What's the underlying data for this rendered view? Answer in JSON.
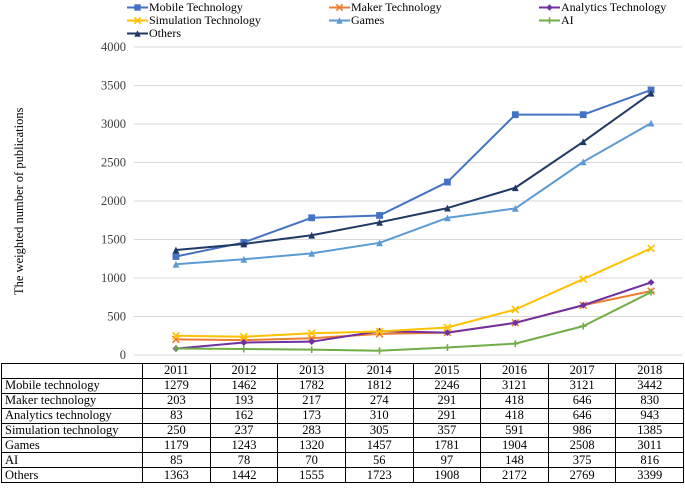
{
  "chart_data": {
    "type": "line",
    "title": "",
    "xlabel": "",
    "ylabel": "The weighted number of publications",
    "x_categories": [
      "2011",
      "2012",
      "2013",
      "2014",
      "2015",
      "2016",
      "2017",
      "2018"
    ],
    "ylim": [
      0,
      4000
    ],
    "ytick_step": 500,
    "grid": true,
    "grid_color": "#D9D9D9",
    "tick_label_color": "#404040",
    "legend_position": "top",
    "legend_columns": [
      [
        "Mobile Technology",
        "Simulation Technology",
        "Others"
      ],
      [
        "Maker Technology",
        "Games"
      ],
      [
        "Analytics Technology",
        "AI"
      ]
    ],
    "series": [
      {
        "name": "Mobile Technology",
        "color": "#4472C4",
        "marker": "square",
        "values": [
          1279,
          1462,
          1782,
          1812,
          2246,
          3121,
          3121,
          3442
        ]
      },
      {
        "name": "Maker Technology",
        "color": "#ED7D31",
        "marker": "x",
        "values": [
          203,
          193,
          217,
          274,
          291,
          418,
          646,
          830
        ]
      },
      {
        "name": "Analytics Technology",
        "color": "#7030A0",
        "marker": "diamond",
        "values": [
          83,
          162,
          173,
          310,
          291,
          418,
          646,
          943
        ]
      },
      {
        "name": "Simulation Technology",
        "color": "#FFC000",
        "marker": "x",
        "values": [
          250,
          237,
          283,
          305,
          357,
          591,
          986,
          1385
        ]
      },
      {
        "name": "Games",
        "color": "#5B9BD5",
        "marker": "triangle",
        "values": [
          1179,
          1243,
          1320,
          1457,
          1781,
          1904,
          2508,
          3011
        ]
      },
      {
        "name": "AI",
        "color": "#70AD47",
        "marker": "plus",
        "values": [
          85,
          78,
          70,
          56,
          97,
          148,
          375,
          816
        ]
      },
      {
        "name": "Others",
        "color": "#1F3864",
        "marker": "triangle",
        "values": [
          1363,
          1442,
          1555,
          1723,
          1908,
          2172,
          2769,
          3399
        ]
      }
    ]
  },
  "table": {
    "header": [
      "",
      "2011",
      "2012",
      "2013",
      "2014",
      "2015",
      "2016",
      "2017",
      "2018"
    ],
    "rows": [
      {
        "label": "Mobile technology",
        "values": [
          "1279",
          "1462",
          "1782",
          "1812",
          "2246",
          "3121",
          "3121",
          "3442"
        ]
      },
      {
        "label": "Maker technology",
        "values": [
          "203",
          "193",
          "217",
          "274",
          "291",
          "418",
          "646",
          "830"
        ]
      },
      {
        "label": "Analytics technology",
        "values": [
          "83",
          "162",
          "173",
          "310",
          "291",
          "418",
          "646",
          "943"
        ]
      },
      {
        "label": "Simulation technology",
        "values": [
          "250",
          "237",
          "283",
          "305",
          "357",
          "591",
          "986",
          "1385"
        ]
      },
      {
        "label": "Games",
        "values": [
          "1179",
          "1243",
          "1320",
          "1457",
          "1781",
          "1904",
          "2508",
          "3011"
        ]
      },
      {
        "label": "AI",
        "values": [
          "85",
          "78",
          "70",
          "56",
          "97",
          "148",
          "375",
          "816"
        ]
      },
      {
        "label": "Others",
        "values": [
          "1363",
          "1442",
          "1555",
          "1723",
          "1908",
          "2172",
          "2769",
          "3399"
        ]
      }
    ]
  }
}
